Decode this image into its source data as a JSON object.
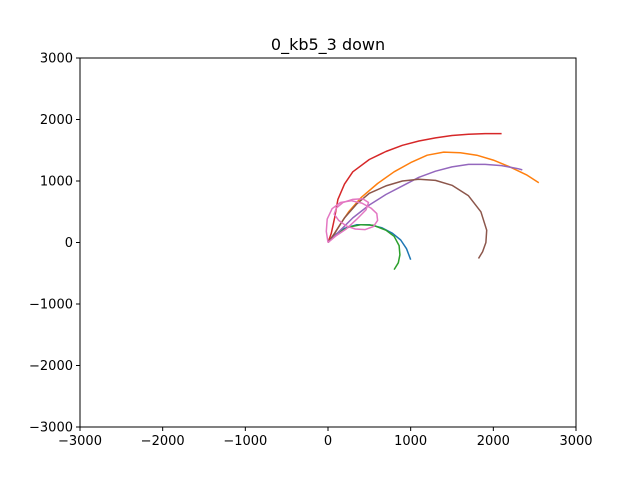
{
  "chart_data": {
    "type": "line",
    "title": "0_kb5_3 down",
    "xlabel": "",
    "ylabel": "",
    "xlim": [
      -3000,
      3000
    ],
    "ylim": [
      -3000,
      3000
    ],
    "xticks": [
      -3000,
      -2000,
      -1000,
      0,
      1000,
      2000,
      3000
    ],
    "yticks": [
      -3000,
      -2000,
      -1000,
      0,
      1000,
      2000,
      3000
    ],
    "xtick_labels": [
      "−3000",
      "−2000",
      "−1000",
      "0",
      "1000",
      "2000",
      "3000"
    ],
    "ytick_labels": [
      "−3000",
      "−2000",
      "−1000",
      "0",
      "1000",
      "2000",
      "3000"
    ],
    "grid": false,
    "legend": "none",
    "series": [
      {
        "color": "#1f77b4",
        "x": [
          0,
          80,
          200,
          350,
          500,
          650,
          780,
          880,
          950,
          1000
        ],
        "y": [
          0,
          120,
          230,
          290,
          290,
          240,
          150,
          40,
          -100,
          -280
        ]
      },
      {
        "color": "#ff7f0e",
        "x": [
          0,
          80,
          150,
          250,
          400,
          600,
          800,
          1000,
          1200,
          1400,
          1600,
          1800,
          2000,
          2200,
          2400,
          2550
        ],
        "y": [
          0,
          150,
          300,
          500,
          730,
          960,
          1150,
          1300,
          1420,
          1470,
          1460,
          1420,
          1340,
          1230,
          1100,
          970
        ]
      },
      {
        "color": "#2ca02c",
        "x": [
          0,
          100,
          250,
          400,
          550,
          700,
          800,
          860,
          870,
          850,
          800
        ],
        "y": [
          0,
          140,
          250,
          290,
          280,
          200,
          100,
          -50,
          -200,
          -330,
          -440
        ]
      },
      {
        "color": "#d62728",
        "x": [
          0,
          40,
          80,
          120,
          200,
          300,
          500,
          700,
          900,
          1100,
          1300,
          1500,
          1700,
          1900,
          2100
        ],
        "y": [
          0,
          150,
          400,
          700,
          950,
          1150,
          1350,
          1480,
          1580,
          1650,
          1700,
          1740,
          1760,
          1770,
          1770
        ]
      },
      {
        "color": "#9467bd",
        "x": [
          0,
          150,
          300,
          500,
          700,
          900,
          1100,
          1300,
          1500,
          1700,
          1900,
          2100,
          2300,
          2350
        ],
        "y": [
          0,
          200,
          400,
          610,
          780,
          920,
          1060,
          1160,
          1230,
          1270,
          1270,
          1250,
          1200,
          1180
        ]
      },
      {
        "color": "#8c564b",
        "x": [
          0,
          80,
          200,
          350,
          500,
          700,
          900,
          1100,
          1300,
          1500,
          1700,
          1850,
          1920,
          1910,
          1870,
          1820
        ],
        "y": [
          0,
          150,
          400,
          630,
          800,
          920,
          1000,
          1030,
          1010,
          930,
          760,
          500,
          200,
          0,
          -150,
          -260
        ]
      },
      {
        "color": "#e377c2",
        "x": [
          0,
          -20,
          -10,
          50,
          150,
          280,
          410,
          520,
          590,
          600,
          550,
          450,
          330,
          220,
          130,
          75,
          100,
          180,
          300,
          420,
          490,
          460,
          350,
          220,
          90,
          0
        ],
        "y": [
          0,
          180,
          380,
          550,
          650,
          680,
          640,
          560,
          470,
          360,
          260,
          210,
          220,
          270,
          360,
          460,
          560,
          650,
          700,
          710,
          650,
          530,
          380,
          220,
          100,
          0
        ]
      }
    ]
  }
}
